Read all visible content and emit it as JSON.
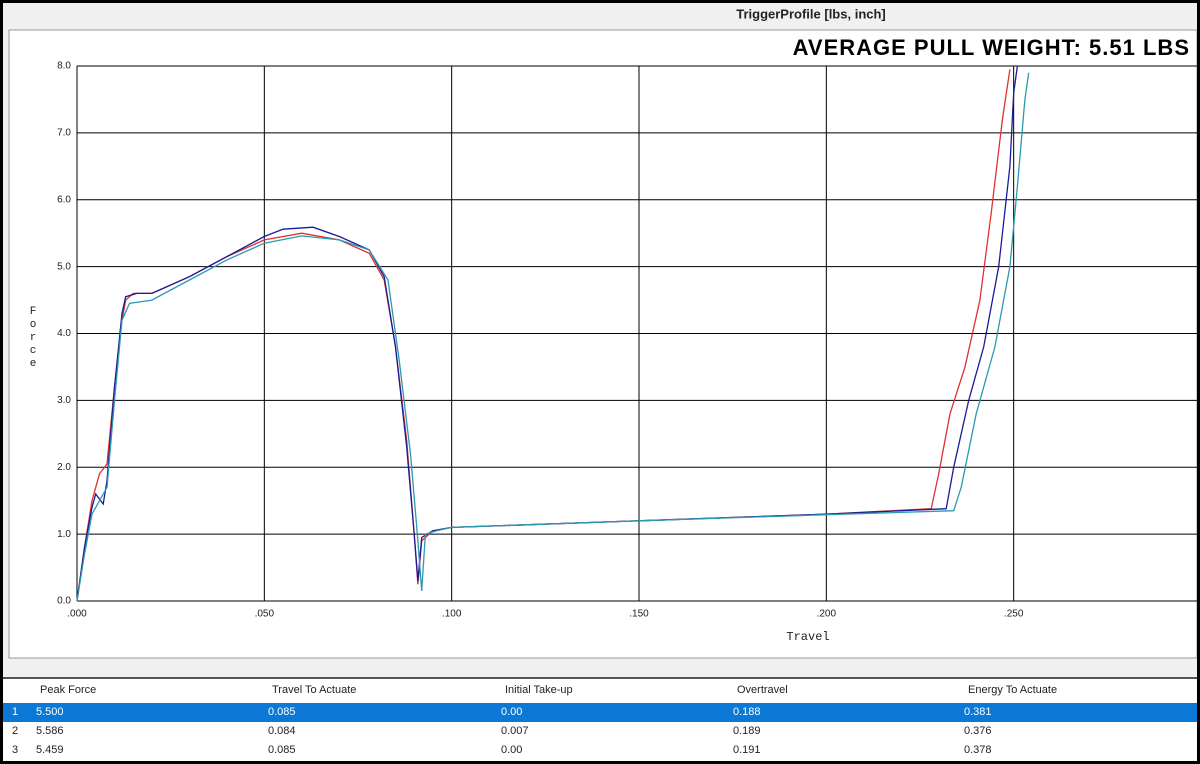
{
  "chart_data": {
    "type": "line",
    "title": "TriggerProfile [lbs, inch]",
    "annotation": "AVERAGE PULL WEIGHT: 5.51 LBS",
    "x_label": "Travel",
    "y_label": "Force",
    "xlim": [
      0,
      0.3
    ],
    "ylim": [
      0,
      8
    ],
    "xticks": [
      {
        "value": 0,
        "label": ".000"
      },
      {
        "value": 0.05,
        "label": ".050"
      },
      {
        "value": 0.1,
        "label": ".100"
      },
      {
        "value": 0.15,
        "label": ".150"
      },
      {
        "value": 0.2,
        "label": ".200"
      },
      {
        "value": 0.25,
        "label": ".250"
      }
    ],
    "yticks": [
      {
        "value": 0,
        "label": "0.0"
      },
      {
        "value": 1,
        "label": "1.0"
      },
      {
        "value": 2,
        "label": "2.0"
      },
      {
        "value": 3,
        "label": "3.0"
      },
      {
        "value": 4,
        "label": "4.0"
      },
      {
        "value": 5,
        "label": "5.0"
      },
      {
        "value": 6,
        "label": "6.0"
      },
      {
        "value": 7,
        "label": "7.0"
      },
      {
        "value": 8,
        "label": "8.0"
      }
    ],
    "grid": true,
    "series": [
      {
        "color": "#e03030",
        "x": [
          0,
          0.002,
          0.004,
          0.006,
          0.008,
          0.01,
          0.012,
          0.013,
          0.015,
          0.02,
          0.03,
          0.04,
          0.05,
          0.06,
          0.07,
          0.078,
          0.082,
          0.085,
          0.088,
          0.09,
          0.091,
          0.092,
          0.095,
          0.1,
          0.15,
          0.2,
          0.228,
          0.23,
          0.233,
          0.237,
          0.241,
          0.244,
          0.247,
          0.249
        ],
        "values": [
          0,
          0.8,
          1.5,
          1.9,
          2.05,
          3.2,
          4.2,
          4.5,
          4.6,
          4.6,
          4.85,
          5.15,
          5.4,
          5.5,
          5.4,
          5.2,
          4.8,
          3.8,
          2.4,
          1.0,
          0.25,
          0.9,
          1.05,
          1.1,
          1.2,
          1.3,
          1.38,
          1.9,
          2.8,
          3.5,
          4.5,
          5.8,
          7.2,
          7.95
        ]
      },
      {
        "color": "#1a1a9a",
        "x": [
          0,
          0.002,
          0.004,
          0.005,
          0.007,
          0.008,
          0.01,
          0.012,
          0.013,
          0.016,
          0.02,
          0.03,
          0.04,
          0.05,
          0.055,
          0.063,
          0.07,
          0.078,
          0.082,
          0.085,
          0.088,
          0.09,
          0.091,
          0.092,
          0.095,
          0.1,
          0.15,
          0.2,
          0.232,
          0.234,
          0.238,
          0.242,
          0.246,
          0.249,
          0.25,
          0.251
        ],
        "values": [
          0,
          0.8,
          1.4,
          1.6,
          1.45,
          1.8,
          3.2,
          4.3,
          4.55,
          4.6,
          4.6,
          4.85,
          5.15,
          5.45,
          5.56,
          5.59,
          5.45,
          5.25,
          4.85,
          3.8,
          2.3,
          1.0,
          0.3,
          0.95,
          1.05,
          1.1,
          1.2,
          1.3,
          1.38,
          2.0,
          3.0,
          3.8,
          5.0,
          6.5,
          7.6,
          8.0
        ]
      },
      {
        "color": "#2a9ab0",
        "x": [
          0,
          0.002,
          0.004,
          0.006,
          0.008,
          0.01,
          0.012,
          0.014,
          0.02,
          0.03,
          0.04,
          0.05,
          0.06,
          0.07,
          0.078,
          0.083,
          0.086,
          0.089,
          0.091,
          0.092,
          0.093,
          0.096,
          0.1,
          0.15,
          0.2,
          0.234,
          0.236,
          0.24,
          0.245,
          0.249,
          0.251,
          0.253,
          0.254
        ],
        "values": [
          0,
          0.7,
          1.3,
          1.5,
          1.7,
          3.0,
          4.2,
          4.45,
          4.5,
          4.8,
          5.1,
          5.35,
          5.46,
          5.4,
          5.25,
          4.8,
          3.6,
          2.2,
          0.9,
          0.15,
          1.0,
          1.05,
          1.1,
          1.2,
          1.29,
          1.35,
          1.7,
          2.8,
          3.8,
          5.0,
          6.2,
          7.5,
          7.9
        ]
      }
    ]
  },
  "table": {
    "columns": [
      "Peak Force",
      "Travel To Actuate",
      "Initial Take-up",
      "Overtravel",
      "Energy To Actuate"
    ],
    "rows": [
      {
        "index": "1",
        "cells": [
          "5.500",
          "0.085",
          "0.00",
          "0.188",
          "0.381"
        ]
      },
      {
        "index": "2",
        "cells": [
          "5.586",
          "0.084",
          "0.007",
          "0.189",
          "0.376"
        ]
      },
      {
        "index": "3",
        "cells": [
          "5.459",
          "0.085",
          "0.00",
          "0.191",
          "0.378"
        ]
      }
    ]
  }
}
